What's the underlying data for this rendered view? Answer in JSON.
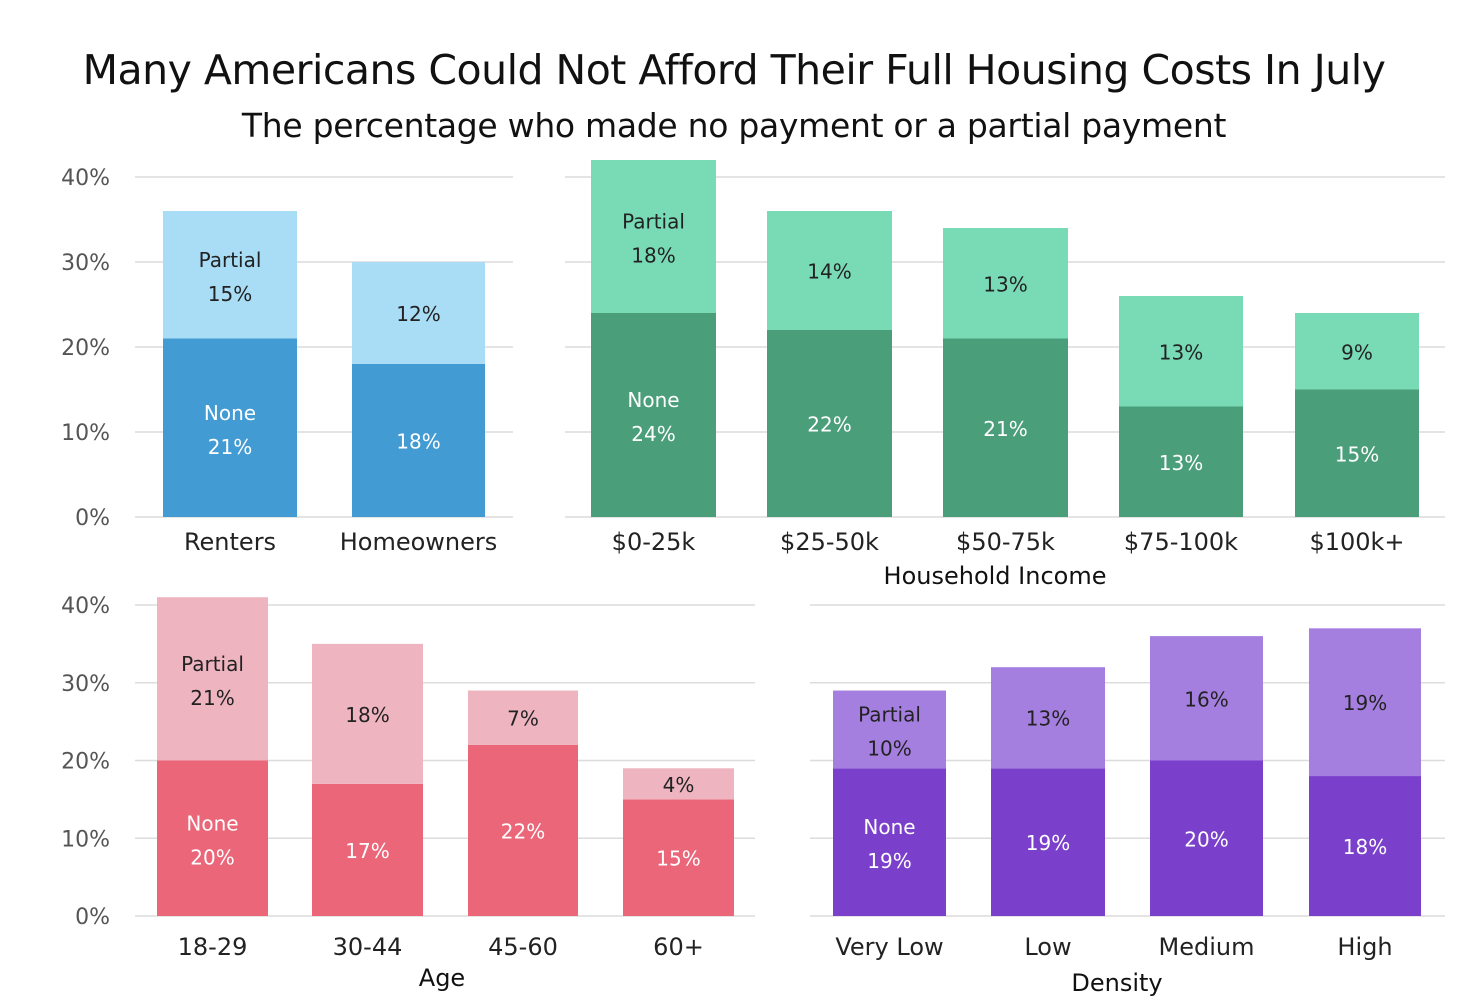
{
  "title": "Many Americans Could Not Afford Their Full Housing Costs In July",
  "subtitle": "The percentage who made no payment or a partial payment",
  "chart_data": [
    {
      "type": "bar",
      "stacked": true,
      "categories": [
        "Renters",
        "Homeowners"
      ],
      "series": [
        {
          "name": "None",
          "values": [
            21,
            18
          ],
          "color": "#439bd3"
        },
        {
          "name": "Partial",
          "values": [
            15,
            12
          ],
          "color": "#a9dcf5"
        }
      ],
      "xlabel": "",
      "ylim": [
        0,
        40
      ],
      "yticks": [
        "0%",
        "10%",
        "20%",
        "30%",
        "40%"
      ],
      "grid": true
    },
    {
      "type": "bar",
      "stacked": true,
      "categories": [
        "$0-25k",
        "$25-50k",
        "$50-75k",
        "$75-100k",
        "$100k+"
      ],
      "series": [
        {
          "name": "None",
          "values": [
            24,
            22,
            21,
            13,
            15
          ],
          "color": "#4a9e7a"
        },
        {
          "name": "Partial",
          "values": [
            18,
            14,
            13,
            13,
            9
          ],
          "color": "#79dbb6"
        }
      ],
      "xlabel": "Household Income",
      "ylim": [
        0,
        40
      ],
      "yticks": [],
      "grid": true
    },
    {
      "type": "bar",
      "stacked": true,
      "categories": [
        "18-29",
        "30-44",
        "45-60",
        "60+"
      ],
      "series": [
        {
          "name": "None",
          "values": [
            20,
            17,
            22,
            15
          ],
          "color": "#ea6678"
        },
        {
          "name": "Partial",
          "values": [
            21,
            18,
            7,
            4
          ],
          "color": "#eeb4c0"
        }
      ],
      "xlabel": "Age",
      "ylim": [
        0,
        40
      ],
      "yticks": [
        "0%",
        "10%",
        "20%",
        "30%",
        "40%"
      ],
      "grid": true
    },
    {
      "type": "bar",
      "stacked": true,
      "categories": [
        "Very Low",
        "Low",
        "Medium",
        "High"
      ],
      "series": [
        {
          "name": "None",
          "values": [
            19,
            19,
            20,
            18
          ],
          "color": "#7a3fcb"
        },
        {
          "name": "Partial",
          "values": [
            10,
            13,
            16,
            19
          ],
          "color": "#a57fe0"
        }
      ],
      "xlabel": "Density",
      "ylim": [
        0,
        40
      ],
      "yticks": [],
      "grid": true
    }
  ]
}
